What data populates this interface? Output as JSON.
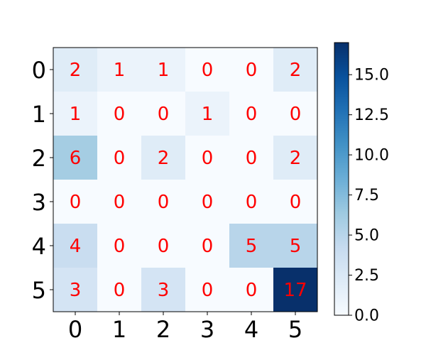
{
  "chart_data": {
    "type": "heatmap",
    "title": "",
    "xlabel": "",
    "ylabel": "",
    "x_categories": [
      "0",
      "1",
      "2",
      "3",
      "4",
      "5"
    ],
    "y_categories": [
      "0",
      "1",
      "2",
      "3",
      "4",
      "5"
    ],
    "values": [
      [
        2,
        1,
        1,
        0,
        0,
        2
      ],
      [
        1,
        0,
        0,
        1,
        0,
        0
      ],
      [
        6,
        0,
        2,
        0,
        0,
        2
      ],
      [
        0,
        0,
        0,
        0,
        0,
        0
      ],
      [
        4,
        0,
        0,
        0,
        5,
        5
      ],
      [
        3,
        0,
        3,
        0,
        0,
        17
      ]
    ],
    "colormap": "Blues",
    "color_range": [
      0,
      17
    ],
    "annotation_color": "#ff0000",
    "colorbar": {
      "placement": "right",
      "ticks": [
        "0.0",
        "2.5",
        "5.0",
        "7.5",
        "10.0",
        "12.5",
        "15.0"
      ],
      "tick_values": [
        0,
        2.5,
        5,
        7.5,
        10,
        12.5,
        15
      ]
    }
  }
}
